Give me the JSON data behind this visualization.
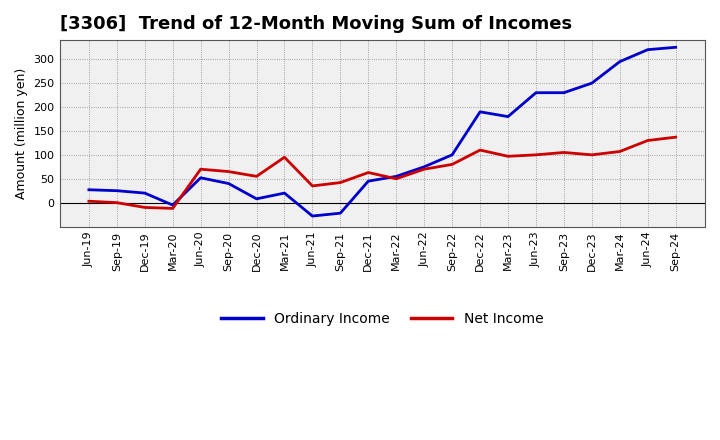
{
  "title": "[3306]  Trend of 12-Month Moving Sum of Incomes",
  "ylabel": "Amount (million yen)",
  "x_labels": [
    "Jun-19",
    "Sep-19",
    "Dec-19",
    "Mar-20",
    "Jun-20",
    "Sep-20",
    "Dec-20",
    "Mar-21",
    "Jun-21",
    "Sep-21",
    "Dec-21",
    "Mar-22",
    "Jun-22",
    "Sep-22",
    "Dec-22",
    "Mar-23",
    "Jun-23",
    "Sep-23",
    "Dec-23",
    "Mar-24",
    "Jun-24",
    "Sep-24"
  ],
  "ordinary_income": [
    27,
    25,
    20,
    -5,
    52,
    40,
    8,
    20,
    -28,
    -22,
    45,
    55,
    75,
    100,
    190,
    180,
    230,
    230,
    250,
    295,
    320,
    325
  ],
  "net_income": [
    3,
    0,
    -10,
    -12,
    70,
    65,
    55,
    95,
    35,
    42,
    63,
    50,
    70,
    80,
    110,
    97,
    100,
    105,
    100,
    107,
    130,
    137
  ],
  "ordinary_income_color": "#0000cc",
  "net_income_color": "#cc0000",
  "line_width": 2.0,
  "ylim": [
    -50,
    340
  ],
  "yticks": [
    0,
    50,
    100,
    150,
    200,
    250,
    300
  ],
  "plot_bg_color": "#f0f0f0",
  "fig_bg_color": "#ffffff",
  "grid_color": "#888888",
  "spine_color": "#555555",
  "legend_labels": [
    "Ordinary Income",
    "Net Income"
  ],
  "title_fontsize": 13,
  "ylabel_fontsize": 9,
  "tick_fontsize": 8
}
